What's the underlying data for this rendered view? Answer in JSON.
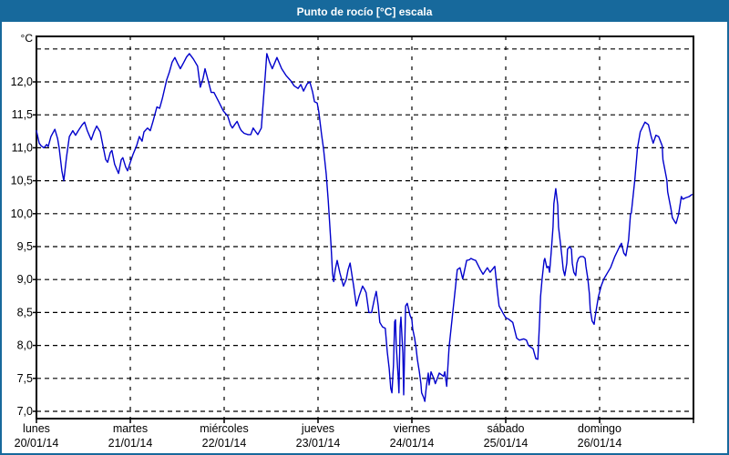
{
  "window": {
    "title": "Punto de rocío [°C] escala"
  },
  "chart_data": {
    "type": "line",
    "title": "Punto de rocío [°C] escala",
    "ylabel": "°C",
    "xlabel": "",
    "ylim": [
      7.0,
      12.5
    ],
    "ytick_step": 0.5,
    "ytick_labels": [
      "12,0",
      "11,5",
      "11,0",
      "10,5",
      "10,0",
      "9,5",
      "9,0",
      "8,5",
      "8,0",
      "7,5",
      "7,0"
    ],
    "ytick_values": [
      12.0,
      11.5,
      11.0,
      10.5,
      10.0,
      9.5,
      9.0,
      8.5,
      8.0,
      7.5,
      7.0
    ],
    "grid": "dashed",
    "legend_position": "none",
    "x_range_hours": 168,
    "x_days": [
      {
        "name": "lunes",
        "date": "20/01/14"
      },
      {
        "name": "martes",
        "date": "21/01/14"
      },
      {
        "name": "miércoles",
        "date": "22/01/14"
      },
      {
        "name": "jueves",
        "date": "23/01/14"
      },
      {
        "name": "viernes",
        "date": "24/01/14"
      },
      {
        "name": "sábado",
        "date": "25/01/14"
      },
      {
        "name": "domingo",
        "date": "26/01/14"
      }
    ],
    "colors": {
      "line": "#0000CC",
      "grid": "#000000",
      "axis": "#000000",
      "titlebar": "#17699C",
      "window_border": "#17699C",
      "background": "#FFFFFF"
    },
    "series": [
      {
        "name": "Punto de rocío",
        "unit": "°C",
        "points": [
          [
            0.0,
            11.26
          ],
          [
            0.7,
            11.07
          ],
          [
            1.2,
            11.03
          ],
          [
            1.9,
            11.0
          ],
          [
            2.6,
            11.05
          ],
          [
            3.0,
            11.02
          ],
          [
            3.7,
            11.17
          ],
          [
            4.7,
            11.28
          ],
          [
            5.4,
            11.14
          ],
          [
            5.8,
            11.0
          ],
          [
            6.5,
            10.65
          ],
          [
            7.0,
            10.5
          ],
          [
            7.7,
            10.86
          ],
          [
            8.4,
            11.17
          ],
          [
            9.3,
            11.26
          ],
          [
            10.0,
            11.19
          ],
          [
            10.7,
            11.26
          ],
          [
            11.7,
            11.35
          ],
          [
            12.3,
            11.39
          ],
          [
            13.0,
            11.26
          ],
          [
            14.0,
            11.12
          ],
          [
            14.7,
            11.24
          ],
          [
            15.4,
            11.33
          ],
          [
            16.3,
            11.24
          ],
          [
            17.0,
            11.03
          ],
          [
            17.7,
            10.82
          ],
          [
            18.2,
            10.78
          ],
          [
            18.9,
            10.93
          ],
          [
            19.3,
            10.96
          ],
          [
            20.0,
            10.75
          ],
          [
            21.0,
            10.61
          ],
          [
            21.7,
            10.82
          ],
          [
            22.1,
            10.85
          ],
          [
            22.8,
            10.71
          ],
          [
            23.3,
            10.65
          ],
          [
            24.0,
            10.78
          ],
          [
            24.7,
            10.9
          ],
          [
            25.6,
            11.03
          ],
          [
            26.3,
            11.17
          ],
          [
            27.0,
            11.1
          ],
          [
            27.5,
            11.24
          ],
          [
            28.4,
            11.3
          ],
          [
            29.1,
            11.26
          ],
          [
            29.8,
            11.4
          ],
          [
            30.8,
            11.62
          ],
          [
            31.5,
            11.6
          ],
          [
            32.2,
            11.75
          ],
          [
            33.3,
            12.03
          ],
          [
            34.0,
            12.15
          ],
          [
            34.7,
            12.3
          ],
          [
            35.4,
            12.37
          ],
          [
            36.1,
            12.28
          ],
          [
            36.8,
            12.2
          ],
          [
            37.7,
            12.3
          ],
          [
            38.4,
            12.38
          ],
          [
            39.1,
            12.43
          ],
          [
            40.1,
            12.35
          ],
          [
            41.2,
            12.24
          ],
          [
            41.9,
            11.92
          ],
          [
            42.6,
            12.05
          ],
          [
            43.1,
            12.2
          ],
          [
            44.0,
            12.0
          ],
          [
            44.7,
            11.84
          ],
          [
            45.4,
            11.84
          ],
          [
            46.6,
            11.7
          ],
          [
            47.8,
            11.56
          ],
          [
            48.9,
            11.48
          ],
          [
            49.6,
            11.35
          ],
          [
            50.1,
            11.3
          ],
          [
            50.8,
            11.36
          ],
          [
            51.3,
            11.4
          ],
          [
            52.0,
            11.3
          ],
          [
            52.4,
            11.26
          ],
          [
            53.1,
            11.22
          ],
          [
            54.1,
            11.2
          ],
          [
            54.8,
            11.2
          ],
          [
            55.4,
            11.3
          ],
          [
            56.1,
            11.24
          ],
          [
            56.6,
            11.2
          ],
          [
            57.5,
            11.3
          ],
          [
            58.0,
            11.7
          ],
          [
            58.5,
            12.1
          ],
          [
            58.9,
            12.43
          ],
          [
            59.6,
            12.3
          ],
          [
            60.3,
            12.2
          ],
          [
            61.0,
            12.3
          ],
          [
            61.5,
            12.37
          ],
          [
            62.7,
            12.2
          ],
          [
            63.8,
            12.1
          ],
          [
            65.0,
            12.02
          ],
          [
            65.9,
            11.94
          ],
          [
            66.9,
            11.9
          ],
          [
            67.6,
            11.96
          ],
          [
            68.3,
            11.86
          ],
          [
            69.2,
            11.97
          ],
          [
            69.9,
            12.0
          ],
          [
            70.6,
            11.85
          ],
          [
            71.1,
            11.7
          ],
          [
            71.8,
            11.68
          ],
          [
            72.2,
            11.54
          ],
          [
            72.9,
            11.2
          ],
          [
            73.4,
            10.99
          ],
          [
            74.1,
            10.6
          ],
          [
            74.6,
            10.2
          ],
          [
            75.3,
            9.54
          ],
          [
            75.7,
            9.1
          ],
          [
            76.0,
            8.97
          ],
          [
            76.4,
            9.15
          ],
          [
            76.9,
            9.29
          ],
          [
            77.6,
            9.1
          ],
          [
            78.5,
            8.9
          ],
          [
            79.2,
            9.0
          ],
          [
            79.7,
            9.15
          ],
          [
            80.2,
            9.25
          ],
          [
            81.1,
            8.9
          ],
          [
            81.8,
            8.6
          ],
          [
            82.5,
            8.75
          ],
          [
            83.4,
            8.9
          ],
          [
            83.9,
            8.85
          ],
          [
            84.3,
            8.8
          ],
          [
            85.0,
            8.5
          ],
          [
            85.7,
            8.5
          ],
          [
            86.4,
            8.7
          ],
          [
            86.9,
            8.82
          ],
          [
            87.4,
            8.6
          ],
          [
            87.8,
            8.35
          ],
          [
            88.5,
            8.28
          ],
          [
            89.2,
            8.26
          ],
          [
            89.7,
            7.9
          ],
          [
            90.2,
            7.65
          ],
          [
            90.6,
            7.35
          ],
          [
            90.9,
            7.28
          ],
          [
            91.3,
            7.7
          ],
          [
            91.6,
            8.36
          ],
          [
            91.8,
            8.39
          ],
          [
            92.0,
            8.01
          ],
          [
            92.5,
            7.51
          ],
          [
            92.7,
            7.28
          ],
          [
            93.0,
            8.28
          ],
          [
            93.2,
            8.43
          ],
          [
            93.7,
            7.88
          ],
          [
            93.9,
            7.25
          ],
          [
            94.4,
            8.6
          ],
          [
            94.8,
            8.64
          ],
          [
            95.5,
            8.46
          ],
          [
            96.0,
            8.39
          ],
          [
            96.2,
            8.25
          ],
          [
            96.7,
            8.11
          ],
          [
            97.1,
            7.95
          ],
          [
            97.4,
            7.79
          ],
          [
            97.9,
            7.6
          ],
          [
            98.3,
            7.42
          ],
          [
            98.5,
            7.28
          ],
          [
            99.0,
            7.21
          ],
          [
            99.3,
            7.15
          ],
          [
            99.7,
            7.38
          ],
          [
            100.2,
            7.58
          ],
          [
            100.4,
            7.4
          ],
          [
            100.9,
            7.6
          ],
          [
            101.6,
            7.5
          ],
          [
            102.0,
            7.42
          ],
          [
            102.5,
            7.5
          ],
          [
            103.0,
            7.58
          ],
          [
            103.7,
            7.55
          ],
          [
            104.1,
            7.53
          ],
          [
            104.4,
            7.6
          ],
          [
            104.9,
            7.38
          ],
          [
            105.5,
            7.97
          ],
          [
            106.5,
            8.53
          ],
          [
            107.2,
            8.92
          ],
          [
            107.6,
            9.15
          ],
          [
            108.3,
            9.18
          ],
          [
            109.0,
            9.01
          ],
          [
            110.0,
            9.29
          ],
          [
            110.7,
            9.3
          ],
          [
            111.1,
            9.32
          ],
          [
            111.8,
            9.3
          ],
          [
            112.3,
            9.29
          ],
          [
            113.5,
            9.15
          ],
          [
            114.2,
            9.08
          ],
          [
            115.3,
            9.18
          ],
          [
            116.0,
            9.11
          ],
          [
            117.2,
            9.2
          ],
          [
            117.9,
            8.8
          ],
          [
            118.3,
            8.6
          ],
          [
            119.3,
            8.49
          ],
          [
            120.0,
            8.42
          ],
          [
            120.7,
            8.4
          ],
          [
            121.8,
            8.35
          ],
          [
            122.8,
            8.11
          ],
          [
            123.5,
            8.08
          ],
          [
            124.6,
            8.1
          ],
          [
            125.3,
            8.08
          ],
          [
            125.8,
            8.0
          ],
          [
            126.5,
            7.97
          ],
          [
            127.0,
            7.95
          ],
          [
            127.7,
            7.8
          ],
          [
            128.2,
            7.79
          ],
          [
            128.6,
            8.3
          ],
          [
            128.9,
            8.74
          ],
          [
            129.3,
            9.01
          ],
          [
            129.8,
            9.29
          ],
          [
            130.0,
            9.32
          ],
          [
            130.5,
            9.18
          ],
          [
            130.9,
            9.2
          ],
          [
            131.2,
            9.11
          ],
          [
            131.6,
            9.4
          ],
          [
            132.1,
            9.8
          ],
          [
            132.3,
            10.15
          ],
          [
            132.8,
            10.38
          ],
          [
            133.3,
            10.13
          ],
          [
            133.5,
            9.8
          ],
          [
            134.0,
            9.54
          ],
          [
            134.4,
            9.33
          ],
          [
            134.7,
            9.15
          ],
          [
            135.1,
            9.06
          ],
          [
            135.6,
            9.25
          ],
          [
            135.8,
            9.46
          ],
          [
            136.3,
            9.5
          ],
          [
            136.8,
            9.46
          ],
          [
            137.0,
            9.25
          ],
          [
            137.4,
            9.11
          ],
          [
            137.9,
            9.06
          ],
          [
            138.2,
            9.25
          ],
          [
            138.6,
            9.32
          ],
          [
            139.1,
            9.35
          ],
          [
            139.8,
            9.35
          ],
          [
            140.3,
            9.32
          ],
          [
            140.5,
            9.2
          ],
          [
            141.0,
            9.01
          ],
          [
            141.4,
            8.78
          ],
          [
            141.6,
            8.55
          ],
          [
            142.1,
            8.37
          ],
          [
            142.6,
            8.32
          ],
          [
            142.8,
            8.42
          ],
          [
            143.3,
            8.6
          ],
          [
            143.7,
            8.74
          ],
          [
            144.4,
            8.9
          ],
          [
            145.1,
            9.01
          ],
          [
            146.1,
            9.11
          ],
          [
            146.8,
            9.18
          ],
          [
            147.9,
            9.35
          ],
          [
            149.1,
            9.5
          ],
          [
            149.6,
            9.55
          ],
          [
            150.2,
            9.4
          ],
          [
            150.7,
            9.36
          ],
          [
            151.4,
            9.6
          ],
          [
            151.9,
            9.99
          ],
          [
            152.1,
            10.01
          ],
          [
            153.0,
            10.51
          ],
          [
            153.7,
            11.0
          ],
          [
            154.4,
            11.24
          ],
          [
            155.6,
            11.39
          ],
          [
            156.5,
            11.35
          ],
          [
            157.2,
            11.17
          ],
          [
            157.7,
            11.07
          ],
          [
            158.4,
            11.19
          ],
          [
            159.1,
            11.17
          ],
          [
            160.0,
            11.03
          ],
          [
            160.2,
            10.82
          ],
          [
            161.2,
            10.51
          ],
          [
            161.4,
            10.33
          ],
          [
            162.3,
            10.06
          ],
          [
            162.6,
            9.94
          ],
          [
            163.5,
            9.85
          ],
          [
            163.7,
            9.88
          ],
          [
            164.2,
            9.99
          ],
          [
            164.9,
            10.26
          ],
          [
            165.3,
            10.22
          ],
          [
            166.0,
            10.24
          ],
          [
            166.9,
            10.26
          ],
          [
            167.6,
            10.29
          ]
        ]
      }
    ]
  }
}
